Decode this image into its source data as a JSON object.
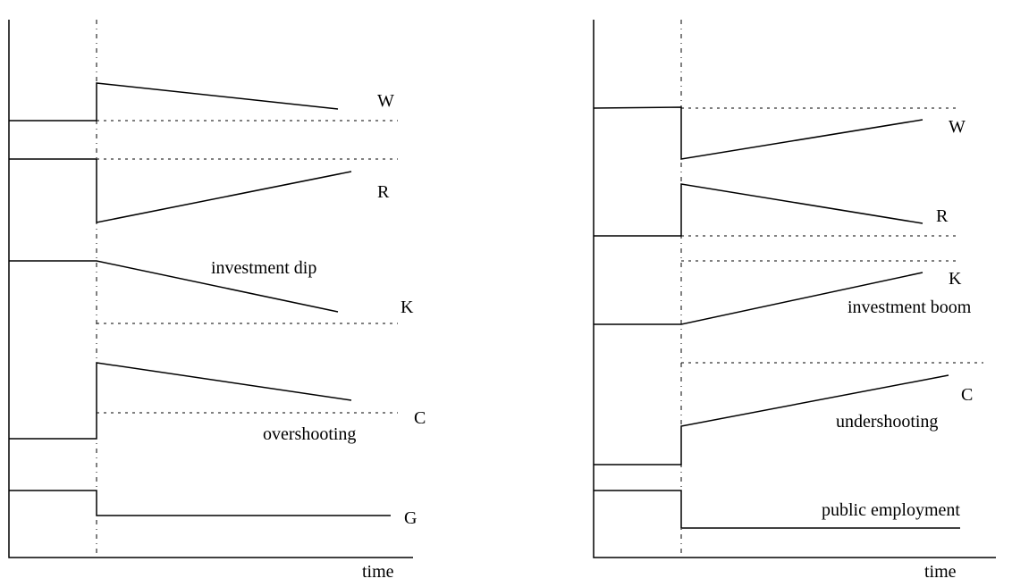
{
  "panels": [
    {
      "name": "left",
      "time_label": "time",
      "labels": {
        "w": "W",
        "r": "R",
        "k": "K",
        "c": "C",
        "g": "G",
        "k_note": "investment dip",
        "c_note": "overshooting"
      }
    },
    {
      "name": "right",
      "time_label": "time",
      "labels": {
        "w": "W",
        "r": "R",
        "k": "K",
        "c": "C",
        "k_note": "investment boom",
        "c_note": "undershooting",
        "g_note": "public employment"
      }
    }
  ]
}
